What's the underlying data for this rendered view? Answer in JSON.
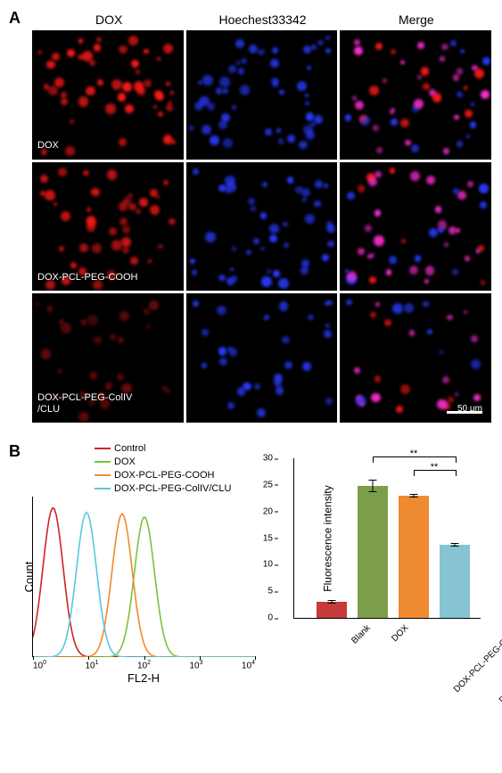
{
  "panelA": {
    "label": "A",
    "columns": [
      "DOX",
      "Hoechest33342",
      "Merge"
    ],
    "rows": [
      {
        "label": "DOX"
      },
      {
        "label": "DOX-PCL-PEG-COOH"
      },
      {
        "label": "DOX-PCL-PEG-ColIV\n/CLU"
      }
    ],
    "scalebar_text": "50 μm",
    "colors": {
      "red": "#ff1a1a",
      "blue": "#2a3bff",
      "magenta": "#ff2fd4",
      "bg": "#000000"
    },
    "intensity_by_row": [
      1.0,
      0.85,
      0.45
    ]
  },
  "panelB": {
    "label": "B",
    "facs": {
      "xlabel": "FL2-H",
      "ylabel": "Count",
      "xticks": [
        "10^0",
        "10^1",
        "10^2",
        "10^3",
        "10^4"
      ],
      "series": [
        {
          "name": "Control",
          "color": "#d02424",
          "peak_x": 0.09,
          "height": 0.98
        },
        {
          "name": "DOX",
          "color": "#7cc23e",
          "peak_x": 0.5,
          "height": 0.92
        },
        {
          "name": "DOX-PCL-PEG-COOH",
          "color": "#f08b2c",
          "peak_x": 0.4,
          "height": 0.94
        },
        {
          "name": "DOX-PCL-PEG-ColIV/CLU",
          "color": "#5bc7de",
          "peak_x": 0.24,
          "height": 0.95
        }
      ]
    },
    "barchart": {
      "ylabel": "Fluorescence intensity",
      "ymax": 30,
      "ytick_step": 5,
      "bars": [
        {
          "label": "Blank",
          "value": 3.0,
          "err": 0.3,
          "color": "#c63a3a"
        },
        {
          "label": "DOX",
          "value": 24.7,
          "err": 1.2,
          "color": "#7c9e4a"
        },
        {
          "label": "DOX-PCL-PEG-COOH",
          "value": 22.8,
          "err": 0.3,
          "color": "#ee8a32"
        },
        {
          "label": "DOX-PCL-PEG-ColIV/CLU",
          "value": 13.7,
          "err": 0.3,
          "color": "#86c4d4"
        }
      ],
      "significance": [
        {
          "from": 1,
          "to": 3,
          "label": "**",
          "y": 29
        },
        {
          "from": 2,
          "to": 3,
          "label": "**",
          "y": 26.5
        }
      ]
    }
  }
}
